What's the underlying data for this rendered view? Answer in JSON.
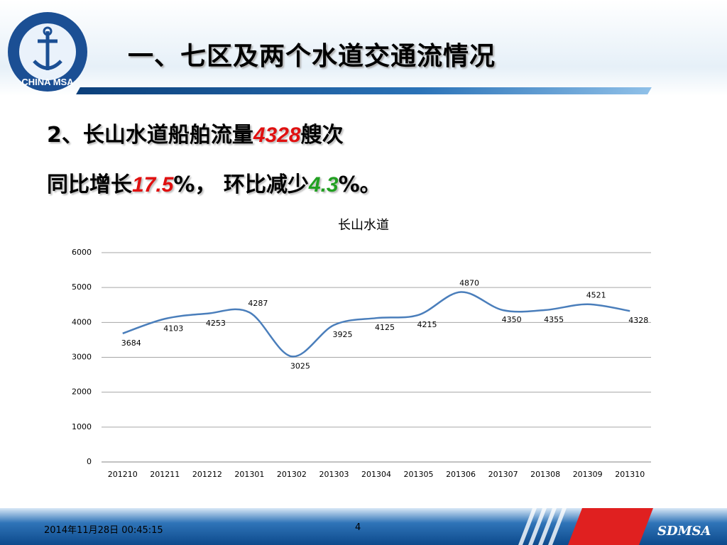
{
  "header": {
    "title": "一、七区及两个水道交通流情况",
    "logo_text": "CHINA MSA"
  },
  "summary": {
    "line1": [
      "2、长山水道船舶流量",
      "4328",
      "艘次"
    ],
    "line2": [
      "同比增长",
      "17.5",
      "%， 环比减少",
      "4.3",
      "%。"
    ]
  },
  "footer": {
    "date": "2014年11月28日  00:45:15",
    "page": "4",
    "brand": "SDMSA"
  },
  "chart_data": {
    "type": "line",
    "title": "长山水道",
    "categories": [
      "201210",
      "201211",
      "201212",
      "201301",
      "201302",
      "201303",
      "201304",
      "201305",
      "201306",
      "201307",
      "201308",
      "201309",
      "201310"
    ],
    "series": [
      {
        "name": "长山水道",
        "color": "#4a7ebb",
        "values": [
          3684,
          4103,
          4253,
          4287,
          3025,
          3925,
          4125,
          4215,
          4870,
          4350,
          4355,
          4521,
          4328
        ]
      }
    ],
    "ylim": [
      0,
      6000
    ],
    "yticks": [
      0,
      1000,
      2000,
      3000,
      4000,
      5000,
      6000
    ],
    "grid": true,
    "smooth": true,
    "data_labels": true
  }
}
